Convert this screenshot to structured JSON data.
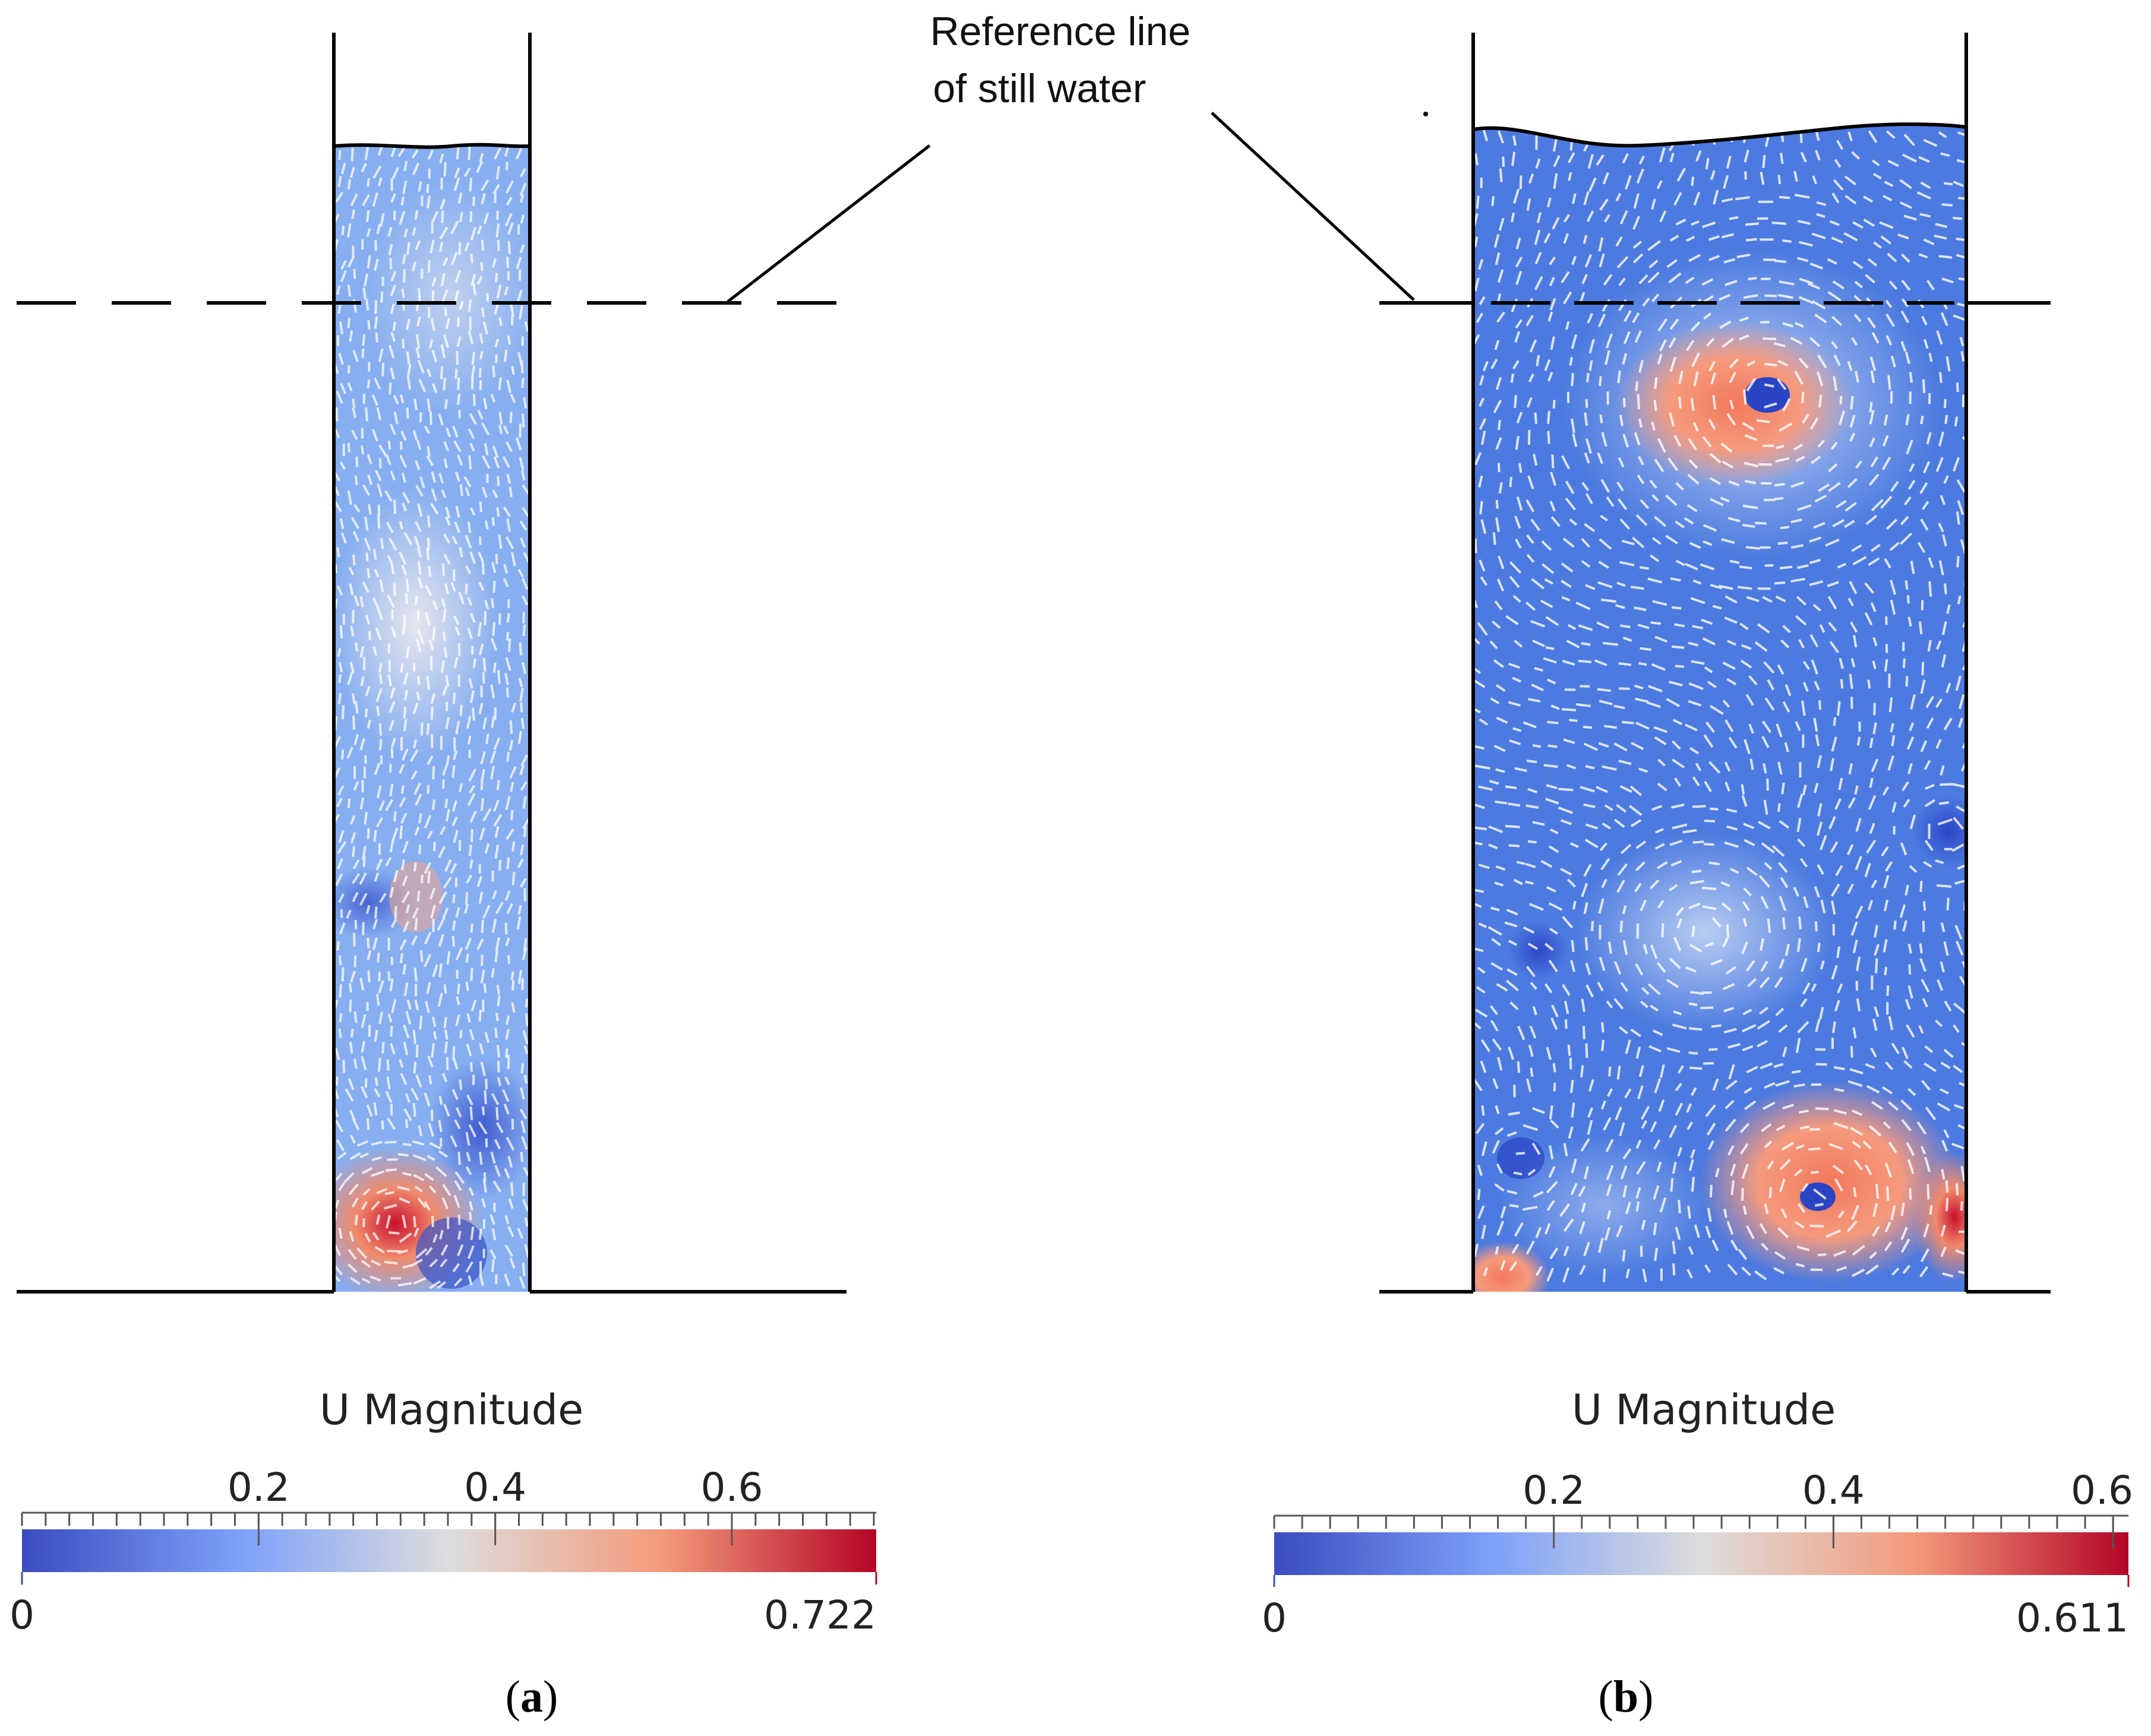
{
  "annotation": {
    "line1": "Reference line",
    "line2": "of still water"
  },
  "panels": [
    {
      "id": "a",
      "tag_open": "(",
      "tag_letter": "a",
      "tag_close": ")",
      "colorbar": {
        "title": "U Magnitude",
        "min_label": "0",
        "max_label": "0.722",
        "range": [
          0,
          0.722
        ],
        "ticks": [
          "0.2",
          "0.4",
          "0.6"
        ]
      }
    },
    {
      "id": "b",
      "tag_open": "(",
      "tag_letter": "b",
      "tag_close": ")",
      "colorbar": {
        "title": "U Magnitude",
        "min_label": "0",
        "max_label": "0.611",
        "range": [
          0,
          0.611
        ],
        "ticks": [
          "0.2",
          "0.4",
          "0.6"
        ]
      }
    }
  ],
  "colors": {
    "low": "#3b4cc0",
    "mid": "#dddddd",
    "high": "#b40426",
    "field_a": "#7da6ec",
    "field_b": "#4675e0",
    "outline": "#000000"
  }
}
